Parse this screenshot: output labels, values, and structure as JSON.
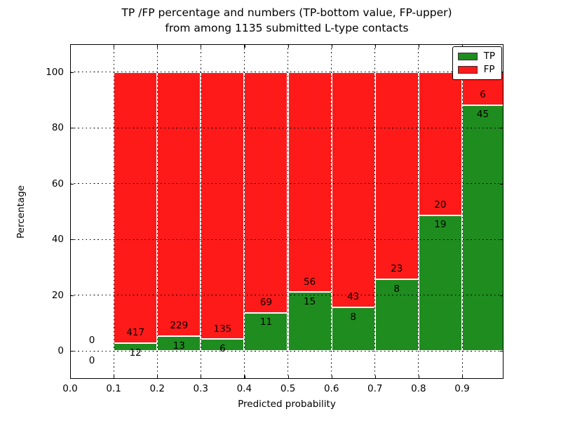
{
  "chart_data": {
    "type": "bar",
    "stacked": true,
    "title": "TP /FP percentage and numbers (TP-bottom value, FP-upper)",
    "subtitle": "from among 1135 submitted L-type contacts",
    "xlabel": "Predicted probability",
    "ylabel": "Percentage",
    "total_contacts": 1135,
    "xlim": [
      0,
      0.995
    ],
    "ylim": [
      -10,
      110
    ],
    "bin_width": 0.1,
    "description": "Each non-empty bin is stacked to 100%: TP share (green) on bottom, FP share (red) on top; black numbers are raw counts (TP below boundary, FP above)",
    "x_ticks": [
      {
        "value": 0.0,
        "label": "0.0"
      },
      {
        "value": 0.1,
        "label": "0.1"
      },
      {
        "value": 0.2,
        "label": "0.2"
      },
      {
        "value": 0.3,
        "label": "0.3"
      },
      {
        "value": 0.4,
        "label": "0.4"
      },
      {
        "value": 0.5,
        "label": "0.5"
      },
      {
        "value": 0.6,
        "label": "0.6"
      },
      {
        "value": 0.7,
        "label": "0.7"
      },
      {
        "value": 0.8,
        "label": "0.8"
      },
      {
        "value": 0.9,
        "label": "0.9"
      }
    ],
    "y_ticks": [
      {
        "value": 0,
        "label": "0"
      },
      {
        "value": 20,
        "label": "20"
      },
      {
        "value": 40,
        "label": "40"
      },
      {
        "value": 60,
        "label": "60"
      },
      {
        "value": 80,
        "label": "80"
      },
      {
        "value": 100,
        "label": "100"
      }
    ],
    "x_gridlines": [
      0.1,
      0.2,
      0.3,
      0.4,
      0.5,
      0.6,
      0.7,
      0.8,
      0.9
    ],
    "y_gridlines": [
      0,
      20,
      40,
      60,
      80,
      100
    ],
    "bins": [
      {
        "x_start": 0.0,
        "tp": 0,
        "fp": 0
      },
      {
        "x_start": 0.1,
        "tp": 12,
        "fp": 417
      },
      {
        "x_start": 0.2,
        "tp": 13,
        "fp": 229
      },
      {
        "x_start": 0.3,
        "tp": 6,
        "fp": 135
      },
      {
        "x_start": 0.4,
        "tp": 11,
        "fp": 69
      },
      {
        "x_start": 0.5,
        "tp": 15,
        "fp": 56
      },
      {
        "x_start": 0.6,
        "tp": 8,
        "fp": 43
      },
      {
        "x_start": 0.7,
        "tp": 8,
        "fp": 23
      },
      {
        "x_start": 0.8,
        "tp": 19,
        "fp": 20
      },
      {
        "x_start": 0.9,
        "tp": 45,
        "fp": 6
      }
    ],
    "legend": {
      "position": "upper right",
      "items": [
        {
          "label": "TP",
          "color": "#1e8c1e"
        },
        {
          "label": "FP",
          "color": "#ff1a1a"
        }
      ]
    },
    "colors": {
      "tp": "#1e8c1e",
      "fp": "#ff1a1a",
      "grid": "#000000",
      "background": "#ffffff",
      "text": "#000000"
    }
  }
}
